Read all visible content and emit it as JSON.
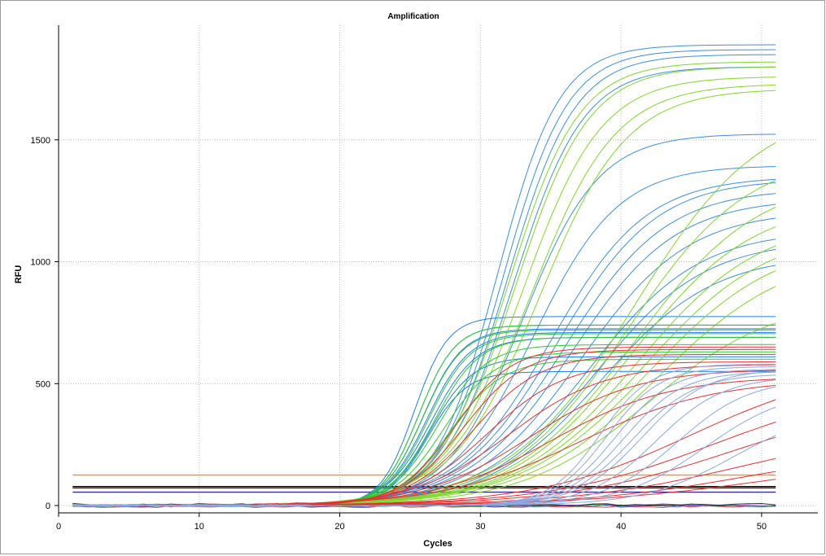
{
  "chart_data": {
    "type": "line",
    "title": "Amplification",
    "xlabel": "Cycles",
    "ylabel": "RFU",
    "xlim": [
      0,
      54
    ],
    "ylim": [
      -30,
      1970
    ],
    "xticks": [
      0,
      10,
      20,
      30,
      40,
      50
    ],
    "yticks": [
      0,
      500,
      1000,
      1500
    ],
    "grid": true,
    "legend": "none",
    "cycles": [
      1,
      51
    ],
    "curve_model": "sigmoid: baseline + plateau / (1 + exp(-(cycle - midpoint) / slope))",
    "horizontal_lines": [
      {
        "color": "#ff8c1a",
        "value": 125
      },
      {
        "color": "#000000",
        "value": 78
      },
      {
        "color": "#6a1a1a",
        "value": 72
      },
      {
        "color": "#3a2a90",
        "value": 55
      }
    ],
    "flat_series_colors": [
      "#e02020",
      "#2040d0",
      "#20a040",
      "#8030c0",
      "#000000"
    ],
    "series_groups": [
      {
        "color": "#3a8fe0",
        "curves": [
          {
            "plateau": 1890,
            "midpoint": 31.2,
            "slope": 2.2
          },
          {
            "plateau": 1870,
            "midpoint": 31.6,
            "slope": 2.3
          },
          {
            "plateau": 1850,
            "midpoint": 31.9,
            "slope": 2.4
          },
          {
            "plateau": 1800,
            "midpoint": 32.3,
            "slope": 2.5
          },
          {
            "plateau": 1525,
            "midpoint": 33.0,
            "slope": 2.7
          },
          {
            "plateau": 1395,
            "midpoint": 33.8,
            "slope": 3.0
          },
          {
            "plateau": 1350,
            "midpoint": 35.0,
            "slope": 3.4
          },
          {
            "plateau": 1340,
            "midpoint": 35.5,
            "slope": 3.5
          },
          {
            "plateau": 1300,
            "midpoint": 36.0,
            "slope": 3.6
          },
          {
            "plateau": 1260,
            "midpoint": 36.5,
            "slope": 3.7
          },
          {
            "plateau": 1210,
            "midpoint": 37.2,
            "slope": 3.8
          },
          {
            "plateau": 1130,
            "midpoint": 37.8,
            "slope": 3.9
          },
          {
            "plateau": 1090,
            "midpoint": 38.2,
            "slope": 3.9
          },
          {
            "plateau": 1030,
            "midpoint": 38.6,
            "slope": 4.0
          }
        ]
      },
      {
        "color": "#1a7fe8",
        "curves": [
          {
            "plateau": 775,
            "midpoint": 25.3,
            "slope": 1.2
          },
          {
            "plateau": 740,
            "midpoint": 25.6,
            "slope": 1.3
          },
          {
            "plateau": 725,
            "midpoint": 25.9,
            "slope": 1.4
          },
          {
            "plateau": 710,
            "midpoint": 26.2,
            "slope": 1.5
          },
          {
            "plateau": 690,
            "midpoint": 26.5,
            "slope": 1.6
          },
          {
            "plateau": 610,
            "midpoint": 26.4,
            "slope": 1.5
          },
          {
            "plateau": 550,
            "midpoint": 26.2,
            "slope": 1.4
          }
        ]
      },
      {
        "color": "#7ed82a",
        "curves": [
          {
            "plateau": 1820,
            "midpoint": 32.0,
            "slope": 2.5
          },
          {
            "plateau": 1800,
            "midpoint": 32.5,
            "slope": 2.6
          },
          {
            "plateau": 1760,
            "midpoint": 33.0,
            "slope": 2.8
          },
          {
            "plateau": 1730,
            "midpoint": 33.6,
            "slope": 3.0
          },
          {
            "plateau": 1710,
            "midpoint": 34.2,
            "slope": 3.1
          },
          {
            "plateau": 1650,
            "midpoint": 41.0,
            "slope": 4.5
          },
          {
            "plateau": 1450,
            "midpoint": 40.5,
            "slope": 4.3
          },
          {
            "plateau": 1350,
            "midpoint": 41.0,
            "slope": 4.4
          },
          {
            "plateau": 1250,
            "midpoint": 40.8,
            "slope": 4.3
          },
          {
            "plateau": 1180,
            "midpoint": 41.2,
            "slope": 4.4
          },
          {
            "plateau": 1140,
            "midpoint": 41.6,
            "slope": 4.5
          },
          {
            "plateau": 1100,
            "midpoint": 42.0,
            "slope": 4.6
          },
          {
            "plateau": 1050,
            "midpoint": 42.6,
            "slope": 4.7
          },
          {
            "plateau": 850,
            "midpoint": 42.0,
            "slope": 4.5
          }
        ]
      },
      {
        "color": "#2ec82e",
        "curves": [
          {
            "plateau": 740,
            "midpoint": 25.6,
            "slope": 1.3
          },
          {
            "plateau": 720,
            "midpoint": 25.9,
            "slope": 1.4
          },
          {
            "plateau": 705,
            "midpoint": 26.3,
            "slope": 1.5
          },
          {
            "plateau": 690,
            "midpoint": 26.7,
            "slope": 1.6
          },
          {
            "plateau": 660,
            "midpoint": 27.0,
            "slope": 1.7
          },
          {
            "plateau": 630,
            "midpoint": 27.4,
            "slope": 1.8
          },
          {
            "plateau": 600,
            "midpoint": 27.8,
            "slope": 1.9
          }
        ]
      },
      {
        "color": "#e83030",
        "curves": [
          {
            "plateau": 650,
            "midpoint": 28.2,
            "slope": 2.0
          },
          {
            "plateau": 640,
            "midpoint": 28.8,
            "slope": 2.2
          },
          {
            "plateau": 620,
            "midpoint": 29.5,
            "slope": 2.4
          },
          {
            "plateau": 590,
            "midpoint": 30.5,
            "slope": 2.8
          },
          {
            "plateau": 580,
            "midpoint": 32.0,
            "slope": 3.4
          },
          {
            "plateau": 560,
            "midpoint": 33.5,
            "slope": 3.8
          },
          {
            "plateau": 530,
            "midpoint": 35.0,
            "slope": 4.2
          },
          {
            "plateau": 520,
            "midpoint": 37.0,
            "slope": 4.8
          },
          {
            "plateau": 580,
            "midpoint": 45.0,
            "slope": 5.5
          },
          {
            "plateau": 500,
            "midpoint": 46.5,
            "slope": 5.8
          },
          {
            "plateau": 450,
            "midpoint": 48.0,
            "slope": 6.0
          },
          {
            "plateau": 320,
            "midpoint": 48.5,
            "slope": 6.0
          },
          {
            "plateau": 240,
            "midpoint": 49.0,
            "slope": 6.0
          },
          {
            "plateau": 200,
            "midpoint": 50.0,
            "slope": 6.5
          }
        ]
      },
      {
        "color": "#8aa8e0",
        "curves": [
          {
            "plateau": 580,
            "midpoint": 38.5,
            "slope": 1.8
          },
          {
            "plateau": 570,
            "midpoint": 39.0,
            "slope": 1.9
          },
          {
            "plateau": 560,
            "midpoint": 39.6,
            "slope": 2.0
          },
          {
            "plateau": 550,
            "midpoint": 40.2,
            "slope": 2.1
          },
          {
            "plateau": 540,
            "midpoint": 40.8,
            "slope": 2.2
          },
          {
            "plateau": 560,
            "midpoint": 41.5,
            "slope": 2.3
          },
          {
            "plateau": 530,
            "midpoint": 42.5,
            "slope": 2.4
          },
          {
            "plateau": 520,
            "midpoint": 44.0,
            "slope": 2.6
          },
          {
            "plateau": 480,
            "midpoint": 46.0,
            "slope": 3.0
          },
          {
            "plateau": 400,
            "midpoint": 48.0,
            "slope": 3.2
          }
        ]
      }
    ]
  }
}
